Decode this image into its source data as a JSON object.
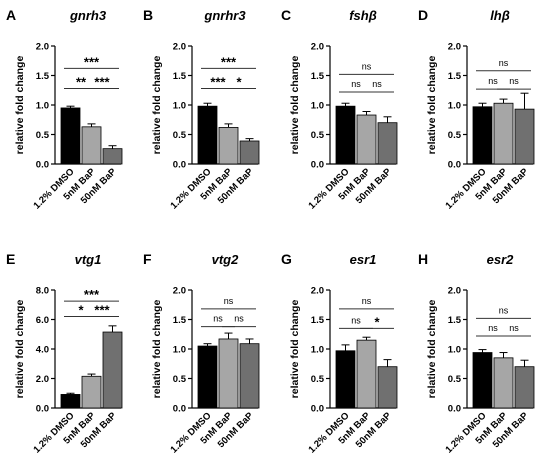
{
  "figure": {
    "colors": {
      "control": "#000000",
      "low": "#a6a6a6",
      "high": "#707070",
      "axis": "#000000",
      "bracket": "#333333"
    },
    "categories": [
      "1.2% DMSO",
      "5nM BaP",
      "50nM BaP"
    ]
  },
  "chart_data": [
    {
      "panel": "A",
      "type": "bar",
      "title": "gnrh3",
      "title_italic": true,
      "ylabel": "relative fold change",
      "categories": [
        "1.2% DMSO",
        "5nM BaP",
        "50nM BaP"
      ],
      "values": [
        0.95,
        0.63,
        0.26
      ],
      "errors": [
        0.03,
        0.05,
        0.05
      ],
      "ylim": [
        0,
        2.0
      ],
      "yticks": [
        {
          "v": 0,
          "label": "0.0"
        },
        {
          "v": 0.5,
          "label": "0.5"
        },
        {
          "v": 1.0,
          "label": "1.0"
        },
        {
          "v": 1.5,
          "label": "1.5"
        },
        {
          "v": 2.0,
          "label": "2.0"
        }
      ],
      "significance": [
        {
          "from": 0,
          "to": 1,
          "y": 1.28,
          "label": "**"
        },
        {
          "from": 1,
          "to": 2,
          "y": 1.28,
          "label": "***"
        },
        {
          "from": 0,
          "to": 2,
          "y": 1.62,
          "label": "***"
        }
      ]
    },
    {
      "panel": "B",
      "type": "bar",
      "title": "gnrhr3",
      "title_italic": true,
      "ylabel": "relative fold change",
      "categories": [
        "1.2% DMSO",
        "5nM BaP",
        "50nM BaP"
      ],
      "values": [
        0.98,
        0.62,
        0.39
      ],
      "errors": [
        0.05,
        0.06,
        0.04
      ],
      "ylim": [
        0,
        2.0
      ],
      "yticks": [
        {
          "v": 0,
          "label": "0.0"
        },
        {
          "v": 0.5,
          "label": "0.5"
        },
        {
          "v": 1.0,
          "label": "1.0"
        },
        {
          "v": 1.5,
          "label": "1.5"
        },
        {
          "v": 2.0,
          "label": "2.0"
        }
      ],
      "significance": [
        {
          "from": 0,
          "to": 1,
          "y": 1.28,
          "label": "***"
        },
        {
          "from": 1,
          "to": 2,
          "y": 1.28,
          "label": "*"
        },
        {
          "from": 0,
          "to": 2,
          "y": 1.62,
          "label": "***"
        }
      ]
    },
    {
      "panel": "C",
      "type": "bar",
      "title": "fshβ",
      "title_italic": true,
      "ylabel": "relative fold change",
      "categories": [
        "1.2% DMSO",
        "5nM BaP",
        "50nM BaP"
      ],
      "values": [
        0.98,
        0.83,
        0.7
      ],
      "errors": [
        0.05,
        0.06,
        0.1
      ],
      "ylim": [
        0,
        2.0
      ],
      "yticks": [
        {
          "v": 0,
          "label": "0.0"
        },
        {
          "v": 0.5,
          "label": "0.5"
        },
        {
          "v": 1.0,
          "label": "1.0"
        },
        {
          "v": 1.5,
          "label": "1.5"
        },
        {
          "v": 2.0,
          "label": "2.0"
        }
      ],
      "significance": [
        {
          "from": 0,
          "to": 1,
          "y": 1.22,
          "label": "ns"
        },
        {
          "from": 1,
          "to": 2,
          "y": 1.22,
          "label": "ns"
        },
        {
          "from": 0,
          "to": 2,
          "y": 1.52,
          "label": "ns"
        }
      ]
    },
    {
      "panel": "D",
      "type": "bar",
      "title": "lhβ",
      "title_italic": true,
      "ylabel": "relative fold change",
      "categories": [
        "1.2% DMSO",
        "5nM BaP",
        "50nM BaP"
      ],
      "values": [
        0.97,
        1.03,
        0.93
      ],
      "errors": [
        0.06,
        0.07,
        0.27
      ],
      "ylim": [
        0,
        2.0
      ],
      "yticks": [
        {
          "v": 0,
          "label": "0.0"
        },
        {
          "v": 0.5,
          "label": "0.5"
        },
        {
          "v": 1.0,
          "label": "1.0"
        },
        {
          "v": 1.5,
          "label": "1.5"
        },
        {
          "v": 2.0,
          "label": "2.0"
        }
      ],
      "significance": [
        {
          "from": 0,
          "to": 1,
          "y": 1.27,
          "label": "ns"
        },
        {
          "from": 1,
          "to": 2,
          "y": 1.27,
          "label": "ns"
        },
        {
          "from": 0,
          "to": 2,
          "y": 1.58,
          "label": "ns"
        }
      ]
    },
    {
      "panel": "E",
      "type": "bar",
      "title": "vtg1",
      "title_italic": true,
      "ylabel": "relative fold change",
      "categories": [
        "1.2% DMSO",
        "5nM BaP",
        "50nM BaP"
      ],
      "values": [
        0.92,
        2.15,
        5.15
      ],
      "errors": [
        0.08,
        0.15,
        0.42
      ],
      "ylim": [
        0,
        8.0
      ],
      "yticks": [
        {
          "v": 0,
          "label": "0.0"
        },
        {
          "v": 2,
          "label": "2.0"
        },
        {
          "v": 4,
          "label": "4.0"
        },
        {
          "v": 6,
          "label": "6.0"
        },
        {
          "v": 8,
          "label": "8.0"
        }
      ],
      "significance": [
        {
          "from": 0,
          "to": 1,
          "y": 6.2,
          "label": "*"
        },
        {
          "from": 1,
          "to": 2,
          "y": 6.2,
          "label": "***"
        },
        {
          "from": 0,
          "to": 2,
          "y": 7.25,
          "label": "***"
        }
      ]
    },
    {
      "panel": "F",
      "type": "bar",
      "title": "vtg2",
      "title_italic": true,
      "ylabel": "relative fold change",
      "categories": [
        "1.2% DMSO",
        "5nM BaP",
        "50nM BaP"
      ],
      "values": [
        1.05,
        1.17,
        1.09
      ],
      "errors": [
        0.04,
        0.1,
        0.08
      ],
      "ylim": [
        0,
        2.0
      ],
      "yticks": [
        {
          "v": 0,
          "label": "0.0"
        },
        {
          "v": 0.5,
          "label": "0.5"
        },
        {
          "v": 1.0,
          "label": "1.0"
        },
        {
          "v": 1.5,
          "label": "1.5"
        },
        {
          "v": 2.0,
          "label": "2.0"
        }
      ],
      "significance": [
        {
          "from": 0,
          "to": 1,
          "y": 1.38,
          "label": "ns"
        },
        {
          "from": 1,
          "to": 2,
          "y": 1.38,
          "label": "ns"
        },
        {
          "from": 0,
          "to": 2,
          "y": 1.68,
          "label": "ns"
        }
      ]
    },
    {
      "panel": "G",
      "type": "bar",
      "title": "esr1",
      "title_italic": true,
      "ylabel": "relative fold change",
      "categories": [
        "1.2% DMSO",
        "5nM BaP",
        "50nM BaP"
      ],
      "values": [
        0.97,
        1.15,
        0.7
      ],
      "errors": [
        0.1,
        0.05,
        0.12
      ],
      "ylim": [
        0,
        2.0
      ],
      "yticks": [
        {
          "v": 0,
          "label": "0.0"
        },
        {
          "v": 0.5,
          "label": "0.5"
        },
        {
          "v": 1.0,
          "label": "1.0"
        },
        {
          "v": 1.5,
          "label": "1.5"
        },
        {
          "v": 2.0,
          "label": "2.0"
        }
      ],
      "significance": [
        {
          "from": 0,
          "to": 1,
          "y": 1.35,
          "label": "ns"
        },
        {
          "from": 1,
          "to": 2,
          "y": 1.35,
          "label": "*"
        },
        {
          "from": 0,
          "to": 2,
          "y": 1.68,
          "label": "ns"
        }
      ]
    },
    {
      "panel": "H",
      "type": "bar",
      "title": "esr2",
      "title_italic": true,
      "ylabel": "relative fold change",
      "categories": [
        "1.2% DMSO",
        "5nM BaP",
        "50nM BaP"
      ],
      "values": [
        0.94,
        0.85,
        0.7
      ],
      "errors": [
        0.05,
        0.09,
        0.11
      ],
      "ylim": [
        0,
        2.0
      ],
      "yticks": [
        {
          "v": 0,
          "label": "0.0"
        },
        {
          "v": 0.5,
          "label": "0.5"
        },
        {
          "v": 1.0,
          "label": "1.0"
        },
        {
          "v": 1.5,
          "label": "1.5"
        },
        {
          "v": 2.0,
          "label": "2.0"
        }
      ],
      "significance": [
        {
          "from": 0,
          "to": 1,
          "y": 1.22,
          "label": "ns"
        },
        {
          "from": 1,
          "to": 2,
          "y": 1.22,
          "label": "ns"
        },
        {
          "from": 0,
          "to": 2,
          "y": 1.52,
          "label": "ns"
        }
      ]
    }
  ]
}
